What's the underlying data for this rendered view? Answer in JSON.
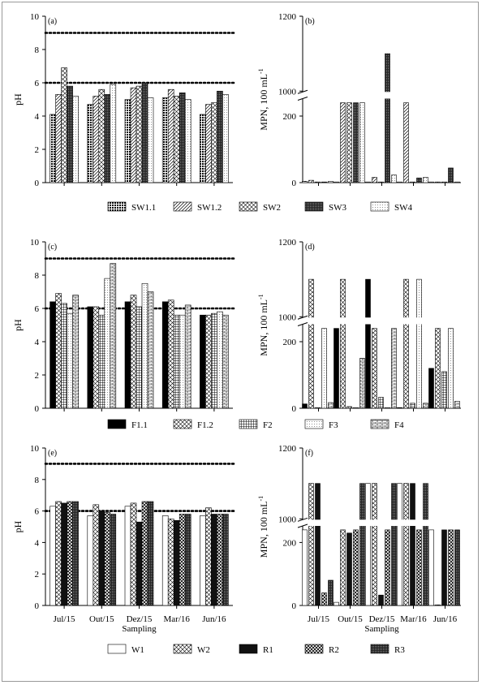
{
  "chart_data": [
    {
      "panel": "(a)",
      "type": "bar",
      "ylabel": "pH",
      "ylim": [
        0,
        10
      ],
      "yticks": [
        "0",
        "2",
        "4",
        "6",
        "8",
        "10"
      ],
      "reference_lines": [
        9,
        6
      ],
      "categories": [
        "Jul/15",
        "Out/15",
        "Dez/15",
        "Mar/16",
        "Jun/16"
      ],
      "series": [
        {
          "name": "SW1.1",
          "pattern": "dots",
          "values": [
            4.1,
            4.7,
            5.0,
            5.1,
            4.1
          ]
        },
        {
          "name": "SW1.2",
          "pattern": "diag",
          "values": [
            5.3,
            5.2,
            5.7,
            5.6,
            4.7
          ]
        },
        {
          "name": "SW2",
          "pattern": "cross",
          "values": [
            6.9,
            5.6,
            5.8,
            5.2,
            4.8
          ]
        },
        {
          "name": "SW3",
          "pattern": "dense",
          "values": [
            5.8,
            5.3,
            6.0,
            5.4,
            5.5
          ]
        },
        {
          "name": "SW4",
          "pattern": "light",
          "values": [
            5.2,
            5.9,
            5.1,
            5.0,
            5.3
          ]
        }
      ]
    },
    {
      "panel": "(b)",
      "type": "bar",
      "ylabel": "MPN, 100 mL",
      "ylabel_sup": "-1",
      "yticks_lower": [
        "0",
        "200"
      ],
      "yticks_upper": [
        "1000",
        "1200"
      ],
      "categories": [
        "Jul/15",
        "Out/15",
        "Dez/15",
        "Mar/16",
        "Jun/16"
      ],
      "series": [
        {
          "name": "SW1.1",
          "pattern": "dots",
          "values": [
            4,
            2,
            2,
            2,
            2
          ]
        },
        {
          "name": "SW1.2",
          "pattern": "diag",
          "values": [
            7,
            240,
            16,
            240,
            2
          ]
        },
        {
          "name": "SW2",
          "pattern": "cross",
          "values": [
            2,
            240,
            2,
            2,
            2
          ]
        },
        {
          "name": "SW3",
          "pattern": "dense",
          "values": [
            2,
            240,
            1100,
            14,
            44
          ]
        },
        {
          "name": "SW4",
          "pattern": "light",
          "values": [
            4,
            240,
            23,
            16,
            2
          ]
        }
      ]
    },
    {
      "panel": "(c)",
      "type": "bar",
      "ylabel": "pH",
      "ylim": [
        0,
        10
      ],
      "yticks": [
        "0",
        "2",
        "4",
        "6",
        "8",
        "10"
      ],
      "reference_lines": [
        9,
        6
      ],
      "categories": [
        "Jul/15",
        "Out/15",
        "Dez/15",
        "Mar/16",
        "Jun/16"
      ],
      "series": [
        {
          "name": "F1.1",
          "pattern": "solid",
          "values": [
            6.4,
            6.1,
            6.4,
            6.4,
            5.6
          ]
        },
        {
          "name": "F1.2",
          "pattern": "cross",
          "values": [
            6.9,
            6.1,
            6.8,
            6.5,
            5.6
          ]
        },
        {
          "name": "F2",
          "pattern": "grid",
          "values": [
            6.3,
            5.6,
            6.1,
            5.6,
            5.7
          ]
        },
        {
          "name": "F3",
          "pattern": "light",
          "values": [
            5.7,
            7.8,
            7.5,
            5.6,
            5.8
          ]
        },
        {
          "name": "F4",
          "pattern": "brick",
          "values": [
            6.8,
            8.7,
            7.0,
            6.2,
            5.6
          ]
        }
      ]
    },
    {
      "panel": "(d)",
      "type": "bar",
      "ylabel": "MPN, 100 mL",
      "ylabel_sup": "-1",
      "yticks_lower": [
        "0",
        "200"
      ],
      "yticks_upper": [
        "1000",
        "1200"
      ],
      "categories": [
        "Jul/15",
        "Out/15",
        "Dez/15",
        "Mar/16",
        "Jun/16"
      ],
      "series": [
        {
          "name": "F1.1",
          "pattern": "solid",
          "values": [
            13,
            240,
            1100,
            2,
            120
          ]
        },
        {
          "name": "F1.2",
          "pattern": "cross",
          "values": [
            1100,
            1100,
            240,
            1100,
            240
          ]
        },
        {
          "name": "F2",
          "pattern": "grid",
          "values": [
            2,
            5,
            33,
            15,
            110
          ]
        },
        {
          "name": "F3",
          "pattern": "light",
          "values": [
            240,
            2,
            2,
            1100,
            240
          ]
        },
        {
          "name": "F4",
          "pattern": "brick",
          "values": [
            17,
            150,
            240,
            15,
            21
          ]
        }
      ]
    },
    {
      "panel": "(e)",
      "type": "bar",
      "ylabel": "pH",
      "ylim": [
        0,
        10
      ],
      "yticks": [
        "0",
        "2",
        "4",
        "6",
        "8",
        "10"
      ],
      "reference_lines": [
        9,
        6
      ],
      "xlabel": "Sampling",
      "categories": [
        "Jul/15",
        "Out/15",
        "Dez/15",
        "Mar/16",
        "Jun/16"
      ],
      "series": [
        {
          "name": "W1",
          "pattern": "white",
          "values": [
            6.3,
            5.7,
            6.3,
            5.7,
            5.7
          ]
        },
        {
          "name": "W2",
          "pattern": "cross",
          "values": [
            6.6,
            6.4,
            6.5,
            5.5,
            6.2
          ]
        },
        {
          "name": "R1",
          "pattern": "dark",
          "values": [
            6.5,
            6.0,
            5.3,
            5.4,
            5.8
          ]
        },
        {
          "name": "R2",
          "pattern": "cross2",
          "values": [
            6.6,
            5.9,
            6.6,
            5.8,
            5.8
          ]
        },
        {
          "name": "R3",
          "pattern": "dense",
          "values": [
            6.6,
            5.8,
            6.6,
            5.8,
            5.8
          ]
        }
      ]
    },
    {
      "panel": "(f)",
      "type": "bar",
      "ylabel": "MPN, 100 mL",
      "ylabel_sup": "-1",
      "yticks_lower": [
        "0",
        "200"
      ],
      "yticks_upper": [
        "1000",
        "1200"
      ],
      "xlabel": "Sampling",
      "categories": [
        "Jul/15",
        "Out/15",
        "Dez/15",
        "Mar/16",
        "Jun/16"
      ],
      "series": [
        {
          "name": "W1",
          "pattern": "white",
          "values": [
            240,
            10,
            1100,
            1100,
            240
          ]
        },
        {
          "name": "W2",
          "pattern": "cross",
          "values": [
            1100,
            240,
            1100,
            1100,
            2
          ]
        },
        {
          "name": "R1",
          "pattern": "dark",
          "values": [
            1100,
            230,
            33,
            1100,
            240
          ]
        },
        {
          "name": "R2",
          "pattern": "cross2",
          "values": [
            40,
            240,
            240,
            240,
            240
          ]
        },
        {
          "name": "R3",
          "pattern": "dense",
          "values": [
            80,
            1100,
            1100,
            1100,
            240
          ]
        }
      ]
    }
  ]
}
